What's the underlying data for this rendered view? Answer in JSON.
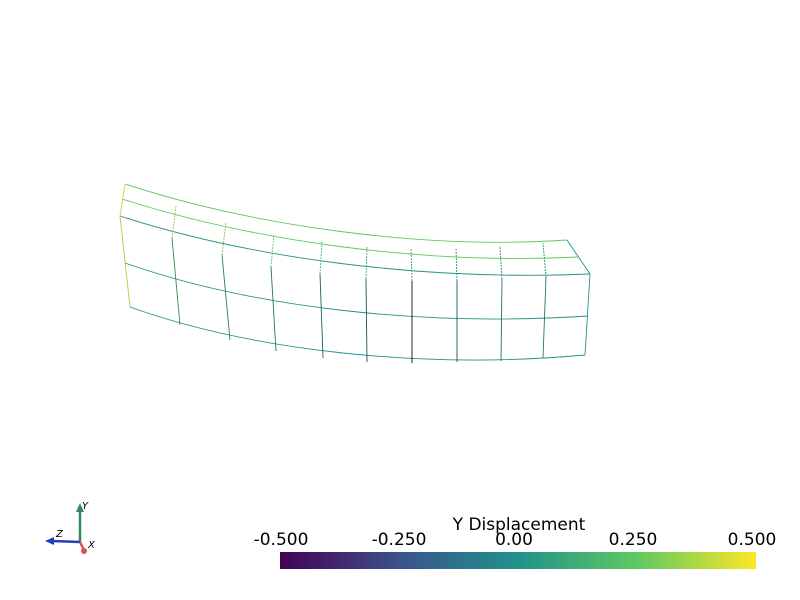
{
  "scalar_bar": {
    "title": "Y Displacement",
    "tick_labels": [
      "-0.500",
      "-0.250",
      "0.00",
      "0.250",
      "0.500"
    ],
    "range": [
      -0.5,
      0.5
    ],
    "colormap": "viridis",
    "colors": [
      "#440154",
      "#3b528b",
      "#21918c",
      "#5ec962",
      "#fde725"
    ]
  },
  "axes": {
    "x_label": "X",
    "y_label": "Y",
    "z_label": "Z",
    "x_color": "#d9534f",
    "y_color": "#2e8b57",
    "z_color": "#1f3fbf"
  }
}
